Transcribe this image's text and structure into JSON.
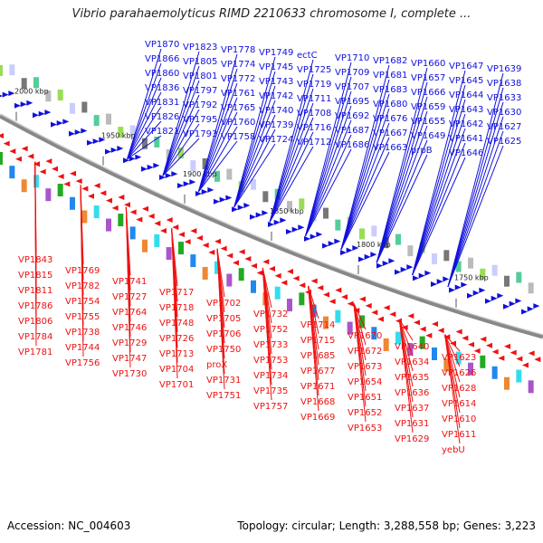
{
  "title": "Vibrio parahaemolyticus RIMD 2210633 chromosome I, complete ...",
  "footer": {
    "accession": "Accession: NC_004603",
    "stats": "Topology: circular; Length: 3,288,558 bp; Genes: 3,223"
  },
  "colors": {
    "forward": "#1010dd",
    "reverse": "#ee1111",
    "backbone": "#888888"
  },
  "ticks": [
    "2000 kbp",
    "1950 kbp",
    "1900 kbp",
    "1850 kbp",
    "1800 kbp",
    "1750 kbp"
  ],
  "forward_labels": [
    "VP1870",
    "VP1866",
    "VP1860",
    "VP1836",
    "VP1831",
    "VP1826",
    "VP1821",
    "VP1823",
    "VP1805",
    "VP1801",
    "VP1797",
    "VP1792",
    "VP1795",
    "VP1793",
    "VP1778",
    "VP1774",
    "VP1772",
    "VP1761",
    "VP1765",
    "VP1760",
    "VP1758",
    "VP1749",
    "VP1745",
    "VP1743",
    "VP1742",
    "VP1740",
    "VP1739",
    "VP1724",
    "ectC",
    "VP1725",
    "VP1719",
    "VP1711",
    "VP1708",
    "VP1716",
    "VP1712",
    "VP1710",
    "VP1709",
    "VP1707",
    "VP1695",
    "VP1692",
    "VP1687",
    "VP1686",
    "VP1682",
    "VP1681",
    "VP1683",
    "VP1680",
    "VP1676",
    "VP1667",
    "VP1663",
    "VP1660",
    "VP1657",
    "VP1666",
    "VP1659",
    "VP1655",
    "VP1649",
    "prpB",
    "VP1647",
    "VP1645",
    "VP1644",
    "VP1643",
    "VP1642",
    "VP1641",
    "VP1646",
    "VP1639",
    "VP1638",
    "VP1633",
    "VP1630",
    "VP1627",
    "VP1625"
  ],
  "reverse_labels": [
    "VP1843",
    "VP1815",
    "VP1811",
    "VP1786",
    "VP1806",
    "VP1784",
    "VP1781",
    "VP1769",
    "VP1782",
    "VP1754",
    "VP1755",
    "VP1738",
    "VP1744",
    "VP1756",
    "VP1741",
    "VP1727",
    "VP1764",
    "VP1746",
    "VP1729",
    "VP1747",
    "VP1730",
    "VP1717",
    "VP1718",
    "VP1748",
    "VP1726",
    "VP1713",
    "VP1704",
    "VP1701",
    "VP1702",
    "VP1705",
    "VP1706",
    "VP1750",
    "proX",
    "VP1731",
    "VP1751",
    "VP1732",
    "VP1752",
    "VP1733",
    "VP1753",
    "VP1734",
    "VP1735",
    "VP1757",
    "VP1714",
    "VP1715",
    "VP1685",
    "VP1677",
    "VP1671",
    "VP1668",
    "VP1669",
    "VP1670",
    "VP1672",
    "VP1673",
    "VP1654",
    "VP1651",
    "VP1652",
    "VP1653",
    "VP1640",
    "VP1634",
    "VP1635",
    "VP1636",
    "VP1637",
    "VP1631",
    "VP1629",
    "VP1623",
    "VP1626",
    "VP1628",
    "VP1614",
    "VP1610",
    "VP1611",
    "yebU"
  ]
}
